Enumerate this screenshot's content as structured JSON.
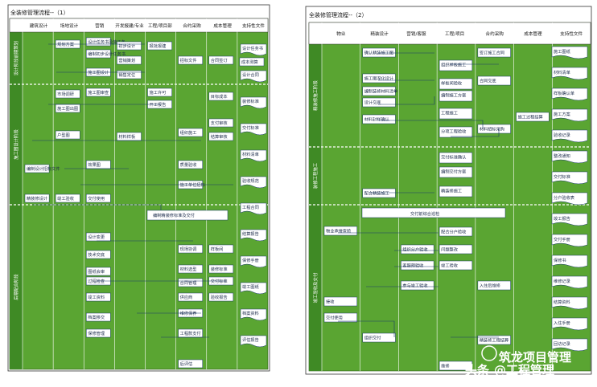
{
  "watermark": "头条 @ 管理工程管理​",
  "watermark_main": "头条",
  "watermark_sub": "@工程管理",
  "watermark_top": "筑龙项目管理",
  "left": {
    "title": "全装修管理流程--（1）",
    "columns": [
      "建筑设计",
      "场地设计",
      "营销",
      "开发报建/专业",
      "工程/项目部",
      "合约采购",
      "成本管理",
      "支持性文件"
    ],
    "lanes": [
      "设计阶段前期策划",
      "施工图设计阶段",
      "后期配合阶段"
    ],
    "boxes": [
      "规划方案",
      "设计任务书及施工条件",
      "编制初步设计任务书",
      "初步设计",
      "施工图设计",
      "施工图审查",
      "施工图出图",
      "营销策划",
      "销售定位",
      "市场调研",
      "报批报建",
      "施工许可",
      "开工报告",
      "招标文件",
      "合同签订",
      "成本测算",
      "目标成本",
      "支付审核",
      "结算审核",
      "户型图",
      "效果图",
      "材料样板",
      "编制设计招标文件",
      "组织施工",
      "质量验收",
      "竣工验收",
      "交付使用",
      "精装修设计",
      "施工单位招标",
      "设计变更",
      "技术交底",
      "图纸会审",
      "过程检查",
      "现场协调",
      "样板间",
      "材料选型",
      "装修标准",
      "合同管理",
      "供应商",
      "验收报告",
      "交付标准",
      "维修保养",
      "工程款支付",
      "竣工资料",
      "档案移交",
      "保修管理",
      "后评估"
    ],
    "banner": "编制精装修标准及交付",
    "docs": [
      "设计任务书",
      "设计合同",
      "装修标准",
      "交付标准",
      "材料清单",
      "验收规范",
      "工程合同",
      "结算报告",
      "保修手册",
      "竣工图纸",
      "档案资料",
      "评估报告"
    ]
  },
  "right": {
    "title": "全装修管理流程--（2）",
    "columns": [
      "物业",
      "精装设计",
      "营销/客服",
      "工程/项目",
      "合约采购",
      "成本管理",
      "支持性文件"
    ],
    "lanes": [
      "精装修施工阶段",
      "装修工程施工",
      "竣工验收及交付"
    ],
    "boxes": [
      "确认精装施工图",
      "施工图深化设计",
      "编制装修材料清单",
      "设计交底",
      "材料封样确认",
      "组织样板施工",
      "样板间验收",
      "编制施工方案",
      "工程施工",
      "分项工程验收",
      "签订施工合同",
      "合同交底",
      "材料招标采购",
      "施工过程结算",
      "精装修施工",
      "配合精装施工",
      "交付标准确认",
      "编制交付方案",
      "物业承接查验",
      "配合分户验收",
      "组织分户验收",
      "问题整改",
      "客服预验收",
      "竣工验收",
      "参与竣工验收",
      "接收",
      "交付使用",
      "组织交付",
      "维修",
      "精装修工程结算",
      "入住后维修"
    ],
    "banner": "交付前综合巡检",
    "docs": [
      "施工图纸",
      "材料清单",
      "样板确认单",
      "施工方案",
      "验收记录",
      "整改通知",
      "交付标准",
      "分户验收表",
      "竣工报告",
      "交付手册",
      "保修书",
      "维修记录",
      "结算资料",
      "入住手册",
      "回访记录"
    ]
  }
}
